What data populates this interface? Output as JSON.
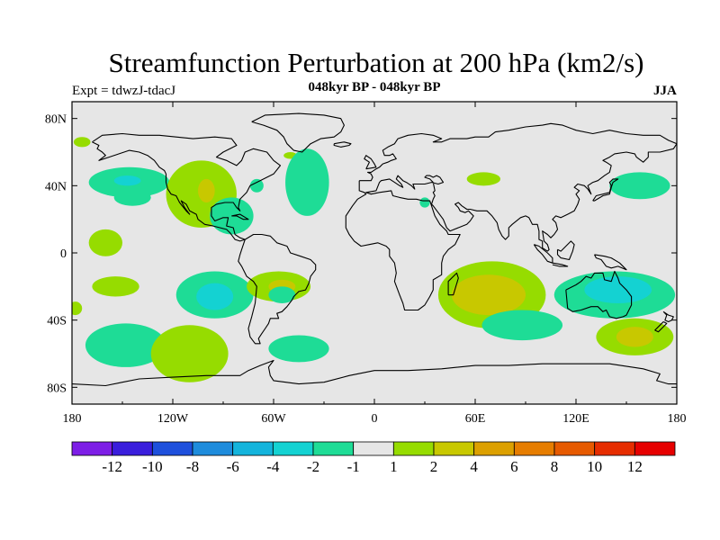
{
  "title": "Streamfunction Perturbation at 200 hPa (km2/s)",
  "subtitle": "048kyr BP - 048kyr BP",
  "left_label": "Expt = tdwzJ-tdacJ",
  "right_label": "JJA",
  "map": {
    "projection": "cylindrical-equidistant",
    "lon_range": [
      -180,
      180
    ],
    "lat_range": [
      -90,
      90
    ],
    "background_color": "#e6e6e6",
    "lon_ticks": [
      {
        "value": -180,
        "label": "180"
      },
      {
        "value": -120,
        "label": "120W"
      },
      {
        "value": -60,
        "label": "60W"
      },
      {
        "value": 0,
        "label": "0"
      },
      {
        "value": 60,
        "label": "60E"
      },
      {
        "value": 120,
        "label": "120E"
      },
      {
        "value": 180,
        "label": "180"
      }
    ],
    "lat_ticks": [
      {
        "value": 80,
        "label": "80N"
      },
      {
        "value": 40,
        "label": "40N"
      },
      {
        "value": 0,
        "label": "0"
      },
      {
        "value": -40,
        "label": "40S"
      },
      {
        "value": -80,
        "label": "80S"
      }
    ]
  },
  "colorbar": {
    "colors": [
      "#7d1ee6",
      "#3a1edc",
      "#1e50dc",
      "#1e8cdc",
      "#14b4dc",
      "#14d2d2",
      "#1edc96",
      "#e6e6e6",
      "#96dc00",
      "#c8c800",
      "#dca000",
      "#e67d00",
      "#e65a00",
      "#e62d00",
      "#e60000"
    ],
    "labels": [
      "-12",
      "-10",
      "-8",
      "-6",
      "-4",
      "-2",
      "-1",
      "1",
      "2",
      "4",
      "6",
      "8",
      "10",
      "12"
    ]
  },
  "chart_data": {
    "type": "heatmap",
    "units": "km2/s",
    "contour_levels": [
      -12,
      -10,
      -8,
      -6,
      -4,
      -2,
      -1,
      1,
      2,
      4,
      6,
      8,
      10,
      12
    ],
    "regions": [
      {
        "lon": -146,
        "lat": 42,
        "rlon": 24,
        "rlat": 9,
        "level": -1
      },
      {
        "lon": -147,
        "lat": 43,
        "rlon": 8,
        "rlat": 3,
        "level": -2
      },
      {
        "lon": -103,
        "lat": 35,
        "rlon": 21,
        "rlat": 20,
        "level": 1
      },
      {
        "lon": -100,
        "lat": 37,
        "rlon": 5,
        "rlat": 7,
        "level": 2
      },
      {
        "lon": -144,
        "lat": 33,
        "rlon": 11,
        "rlat": 5,
        "level": -1
      },
      {
        "lon": -85,
        "lat": 22,
        "rlon": 13,
        "rlat": 11,
        "level": -1
      },
      {
        "lon": -70,
        "lat": 40,
        "rlon": 4,
        "rlat": 4,
        "level": -1
      },
      {
        "lon": -50,
        "lat": 58,
        "rlon": 4,
        "rlat": 2,
        "level": 1
      },
      {
        "lon": -174,
        "lat": 66,
        "rlon": 5,
        "rlat": 3,
        "level": 1
      },
      {
        "lon": -40,
        "lat": 42,
        "rlon": 13,
        "rlat": 20,
        "level": -1
      },
      {
        "lon": -160,
        "lat": 6,
        "rlon": 10,
        "rlat": 8,
        "level": 1
      },
      {
        "lon": -154,
        "lat": -20,
        "rlon": 14,
        "rlat": 6,
        "level": 1
      },
      {
        "lon": -95,
        "lat": -25,
        "rlon": 23,
        "rlat": 14,
        "level": -1
      },
      {
        "lon": -95,
        "lat": -26,
        "rlon": 11,
        "rlat": 8,
        "level": -2
      },
      {
        "lon": -57,
        "lat": -20,
        "rlon": 19,
        "rlat": 9,
        "level": 1
      },
      {
        "lon": -55,
        "lat": -20,
        "rlon": 8,
        "rlat": 4,
        "level": 2
      },
      {
        "lon": -55,
        "lat": -25,
        "rlon": 8,
        "rlat": 5,
        "level": -1
      },
      {
        "lon": -148,
        "lat": -55,
        "rlon": 24,
        "rlat": 13,
        "level": -1
      },
      {
        "lon": -110,
        "lat": -60,
        "rlon": 23,
        "rlat": 17,
        "level": 1
      },
      {
        "lon": -45,
        "lat": -57,
        "rlon": 18,
        "rlat": 8,
        "level": -1
      },
      {
        "lon": -178,
        "lat": -33,
        "rlon": 4,
        "rlat": 4,
        "level": 1
      },
      {
        "lon": 70,
        "lat": -25,
        "rlon": 32,
        "rlat": 20,
        "level": 1
      },
      {
        "lon": 68,
        "lat": -25,
        "rlon": 22,
        "rlat": 12,
        "level": 2
      },
      {
        "lon": 88,
        "lat": -43,
        "rlon": 24,
        "rlat": 9,
        "level": -1
      },
      {
        "lon": 143,
        "lat": -25,
        "rlon": 36,
        "rlat": 14,
        "level": -1
      },
      {
        "lon": 145,
        "lat": -22,
        "rlon": 20,
        "rlat": 8,
        "level": -2
      },
      {
        "lon": 155,
        "lat": -50,
        "rlon": 23,
        "rlat": 11,
        "level": 1
      },
      {
        "lon": 155,
        "lat": -50,
        "rlon": 11,
        "rlat": 6,
        "level": 2
      },
      {
        "lon": 158,
        "lat": 40,
        "rlon": 18,
        "rlat": 8,
        "level": -1
      },
      {
        "lon": 30,
        "lat": 30,
        "rlon": 3,
        "rlat": 3,
        "level": -1
      },
      {
        "lon": 65,
        "lat": 44,
        "rlon": 10,
        "rlat": 4,
        "level": 1
      }
    ]
  }
}
